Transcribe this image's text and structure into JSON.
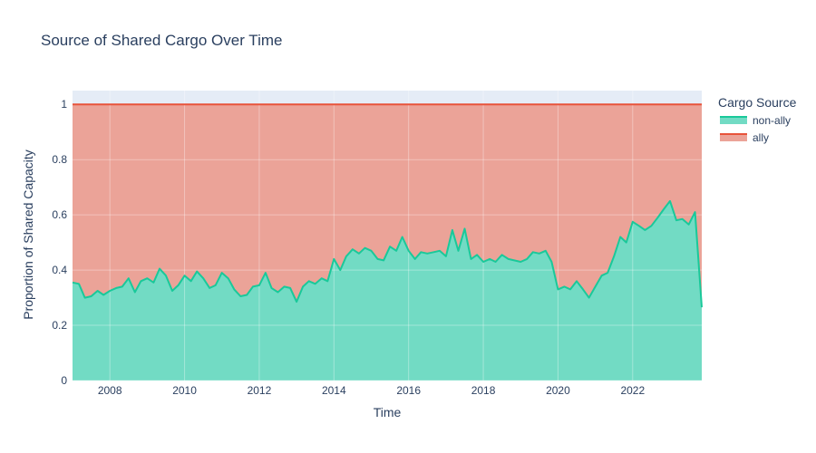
{
  "chart_data": {
    "type": "area",
    "stacked": true,
    "title": "Source of Shared Cargo Over Time",
    "xlabel": "Time",
    "ylabel": "Proportion of Shared Capacity",
    "xlim": [
      2007.0,
      2023.85
    ],
    "ylim": [
      0,
      1.05
    ],
    "x_ticks": [
      2008,
      2010,
      2012,
      2014,
      2016,
      2018,
      2020,
      2022
    ],
    "x_tick_labels": [
      "2008",
      "2010",
      "2012",
      "2014",
      "2016",
      "2018",
      "2020",
      "2022"
    ],
    "y_ticks": [
      0,
      0.2,
      0.4,
      0.6,
      0.8,
      1
    ],
    "y_tick_labels": [
      "0",
      "0.2",
      "0.4",
      "0.6",
      "0.8",
      "1"
    ],
    "grid": true,
    "background": "#e5ecf6",
    "legend": {
      "title": "Cargo Source",
      "placement": "right"
    },
    "series": [
      {
        "name": "non-ally",
        "color": "#19c99a",
        "fill": "#72dbc4",
        "points": [
          [
            2007.0,
            0.355
          ],
          [
            2007.17,
            0.35
          ],
          [
            2007.33,
            0.3
          ],
          [
            2007.5,
            0.305
          ],
          [
            2007.67,
            0.325
          ],
          [
            2007.83,
            0.31
          ],
          [
            2008.0,
            0.325
          ],
          [
            2008.17,
            0.335
          ],
          [
            2008.33,
            0.34
          ],
          [
            2008.5,
            0.37
          ],
          [
            2008.67,
            0.32
          ],
          [
            2008.83,
            0.36
          ],
          [
            2009.0,
            0.37
          ],
          [
            2009.17,
            0.355
          ],
          [
            2009.33,
            0.405
          ],
          [
            2009.5,
            0.38
          ],
          [
            2009.67,
            0.325
          ],
          [
            2009.83,
            0.345
          ],
          [
            2010.0,
            0.38
          ],
          [
            2010.17,
            0.36
          ],
          [
            2010.33,
            0.395
          ],
          [
            2010.5,
            0.37
          ],
          [
            2010.67,
            0.335
          ],
          [
            2010.83,
            0.345
          ],
          [
            2011.0,
            0.39
          ],
          [
            2011.17,
            0.37
          ],
          [
            2011.33,
            0.33
          ],
          [
            2011.5,
            0.305
          ],
          [
            2011.67,
            0.31
          ],
          [
            2011.83,
            0.34
          ],
          [
            2012.0,
            0.345
          ],
          [
            2012.17,
            0.39
          ],
          [
            2012.33,
            0.335
          ],
          [
            2012.5,
            0.32
          ],
          [
            2012.67,
            0.34
          ],
          [
            2012.83,
            0.335
          ],
          [
            2013.0,
            0.285
          ],
          [
            2013.17,
            0.34
          ],
          [
            2013.33,
            0.36
          ],
          [
            2013.5,
            0.35
          ],
          [
            2013.67,
            0.37
          ],
          [
            2013.83,
            0.36
          ],
          [
            2014.0,
            0.44
          ],
          [
            2014.17,
            0.4
          ],
          [
            2014.33,
            0.45
          ],
          [
            2014.5,
            0.475
          ],
          [
            2014.67,
            0.46
          ],
          [
            2014.83,
            0.48
          ],
          [
            2015.0,
            0.47
          ],
          [
            2015.17,
            0.44
          ],
          [
            2015.33,
            0.435
          ],
          [
            2015.5,
            0.485
          ],
          [
            2015.67,
            0.47
          ],
          [
            2015.83,
            0.52
          ],
          [
            2016.0,
            0.47
          ],
          [
            2016.17,
            0.44
          ],
          [
            2016.33,
            0.465
          ],
          [
            2016.5,
            0.46
          ],
          [
            2016.67,
            0.465
          ],
          [
            2016.83,
            0.47
          ],
          [
            2017.0,
            0.45
          ],
          [
            2017.17,
            0.545
          ],
          [
            2017.33,
            0.47
          ],
          [
            2017.5,
            0.55
          ],
          [
            2017.67,
            0.44
          ],
          [
            2017.83,
            0.455
          ],
          [
            2018.0,
            0.43
          ],
          [
            2018.17,
            0.44
          ],
          [
            2018.33,
            0.43
          ],
          [
            2018.5,
            0.455
          ],
          [
            2018.67,
            0.44
          ],
          [
            2018.83,
            0.435
          ],
          [
            2019.0,
            0.43
          ],
          [
            2019.17,
            0.44
          ],
          [
            2019.33,
            0.465
          ],
          [
            2019.5,
            0.46
          ],
          [
            2019.67,
            0.47
          ],
          [
            2019.83,
            0.43
          ],
          [
            2020.0,
            0.33
          ],
          [
            2020.17,
            0.34
          ],
          [
            2020.33,
            0.33
          ],
          [
            2020.5,
            0.36
          ],
          [
            2020.67,
            0.33
          ],
          [
            2020.83,
            0.3
          ],
          [
            2021.0,
            0.34
          ],
          [
            2021.17,
            0.38
          ],
          [
            2021.33,
            0.39
          ],
          [
            2021.5,
            0.45
          ],
          [
            2021.67,
            0.52
          ],
          [
            2021.83,
            0.5
          ],
          [
            2022.0,
            0.575
          ],
          [
            2022.17,
            0.56
          ],
          [
            2022.33,
            0.545
          ],
          [
            2022.5,
            0.56
          ],
          [
            2022.67,
            0.59
          ],
          [
            2022.83,
            0.62
          ],
          [
            2023.0,
            0.65
          ],
          [
            2023.17,
            0.58
          ],
          [
            2023.33,
            0.585
          ],
          [
            2023.5,
            0.565
          ],
          [
            2023.67,
            0.61
          ],
          [
            2023.85,
            0.265
          ]
        ]
      },
      {
        "name": "ally",
        "color": "#e8533a",
        "fill": "#eba398",
        "points": [
          [
            2007.0,
            1.0
          ],
          [
            2023.85,
            1.0
          ]
        ]
      }
    ]
  }
}
